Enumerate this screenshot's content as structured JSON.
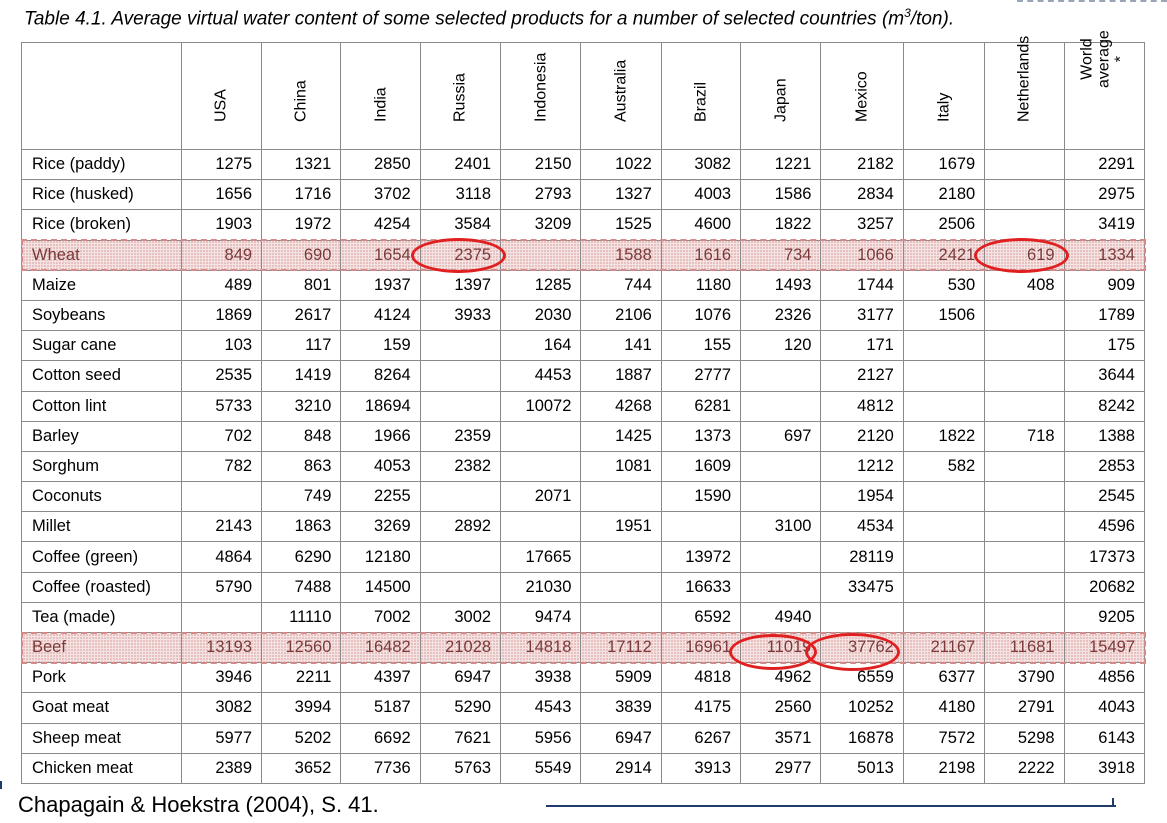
{
  "caption": {
    "prefix": "Table 4.1. Average virtual water content of some selected products for a number of selected countries (m",
    "superscript": "3",
    "suffix": "/ton)."
  },
  "columns": [
    "USA",
    "China",
    "India",
    "Russia",
    "Indonesia",
    "Australia",
    "Brazil",
    "Japan",
    "Mexico",
    "Italy",
    "Netherlands",
    "World\naverage *"
  ],
  "rows": [
    {
      "product": "Rice (paddy)",
      "values": [
        "1275",
        "1321",
        "2850",
        "2401",
        "2150",
        "1022",
        "3082",
        "1221",
        "2182",
        "1679",
        "",
        "2291"
      ]
    },
    {
      "product": "Rice (husked)",
      "values": [
        "1656",
        "1716",
        "3702",
        "3118",
        "2793",
        "1327",
        "4003",
        "1586",
        "2834",
        "2180",
        "",
        "2975"
      ]
    },
    {
      "product": "Rice (broken)",
      "values": [
        "1903",
        "1972",
        "4254",
        "3584",
        "3209",
        "1525",
        "4600",
        "1822",
        "3257",
        "2506",
        "",
        "3419"
      ]
    },
    {
      "product": "Wheat",
      "values": [
        "849",
        "690",
        "1654",
        "2375",
        "",
        "1588",
        "1616",
        "734",
        "1066",
        "2421",
        "619",
        "1334"
      ]
    },
    {
      "product": "Maize",
      "values": [
        "489",
        "801",
        "1937",
        "1397",
        "1285",
        "744",
        "1180",
        "1493",
        "1744",
        "530",
        "408",
        "909"
      ]
    },
    {
      "product": "Soybeans",
      "values": [
        "1869",
        "2617",
        "4124",
        "3933",
        "2030",
        "2106",
        "1076",
        "2326",
        "3177",
        "1506",
        "",
        "1789"
      ]
    },
    {
      "product": "Sugar cane",
      "values": [
        "103",
        "117",
        "159",
        "",
        "164",
        "141",
        "155",
        "120",
        "171",
        "",
        "",
        "175"
      ]
    },
    {
      "product": "Cotton seed",
      "values": [
        "2535",
        "1419",
        "8264",
        "",
        "4453",
        "1887",
        "2777",
        "",
        "2127",
        "",
        "",
        "3644"
      ]
    },
    {
      "product": "Cotton lint",
      "values": [
        "5733",
        "3210",
        "18694",
        "",
        "10072",
        "4268",
        "6281",
        "",
        "4812",
        "",
        "",
        "8242"
      ]
    },
    {
      "product": "Barley",
      "values": [
        "702",
        "848",
        "1966",
        "2359",
        "",
        "1425",
        "1373",
        "697",
        "2120",
        "1822",
        "718",
        "1388"
      ]
    },
    {
      "product": "Sorghum",
      "values": [
        "782",
        "863",
        "4053",
        "2382",
        "",
        "1081",
        "1609",
        "",
        "1212",
        "582",
        "",
        "2853"
      ]
    },
    {
      "product": "Coconuts",
      "values": [
        "",
        "749",
        "2255",
        "",
        "2071",
        "",
        "1590",
        "",
        "1954",
        "",
        "",
        "2545"
      ]
    },
    {
      "product": "Millet",
      "values": [
        "2143",
        "1863",
        "3269",
        "2892",
        "",
        "1951",
        "",
        "3100",
        "4534",
        "",
        "",
        "4596"
      ]
    },
    {
      "product": "Coffee (green)",
      "values": [
        "4864",
        "6290",
        "12180",
        "",
        "17665",
        "",
        "13972",
        "",
        "28119",
        "",
        "",
        "17373"
      ]
    },
    {
      "product": "Coffee (roasted)",
      "values": [
        "5790",
        "7488",
        "14500",
        "",
        "21030",
        "",
        "16633",
        "",
        "33475",
        "",
        "",
        "20682"
      ]
    },
    {
      "product": "Tea (made)",
      "values": [
        "",
        "11110",
        "7002",
        "3002",
        "9474",
        "",
        "6592",
        "4940",
        "",
        "",
        "",
        "9205"
      ]
    },
    {
      "product": "Beef",
      "values": [
        "13193",
        "12560",
        "16482",
        "21028",
        "14818",
        "17112",
        "16961",
        "11019",
        "37762",
        "21167",
        "11681",
        "15497"
      ]
    },
    {
      "product": "Pork",
      "values": [
        "3946",
        "2211",
        "4397",
        "6947",
        "3938",
        "5909",
        "4818",
        "4962",
        "6559",
        "6377",
        "3790",
        "4856"
      ]
    },
    {
      "product": "Goat meat",
      "values": [
        "3082",
        "3994",
        "5187",
        "5290",
        "4543",
        "3839",
        "4175",
        "2560",
        "10252",
        "4180",
        "2791",
        "4043"
      ]
    },
    {
      "product": "Sheep meat",
      "values": [
        "5977",
        "5202",
        "6692",
        "7621",
        "5956",
        "6947",
        "6267",
        "3571",
        "16878",
        "7572",
        "5298",
        "6143"
      ]
    },
    {
      "product": "Chicken meat",
      "values": [
        "2389",
        "3652",
        "7736",
        "5763",
        "5549",
        "2914",
        "3913",
        "2977",
        "5013",
        "2198",
        "2222",
        "3918"
      ]
    }
  ],
  "source": "Chapagain & Hoekstra (2004), S. 41.",
  "colors": {
    "highlight_ring": "#e02020",
    "source_line": "#1f3a6b"
  }
}
